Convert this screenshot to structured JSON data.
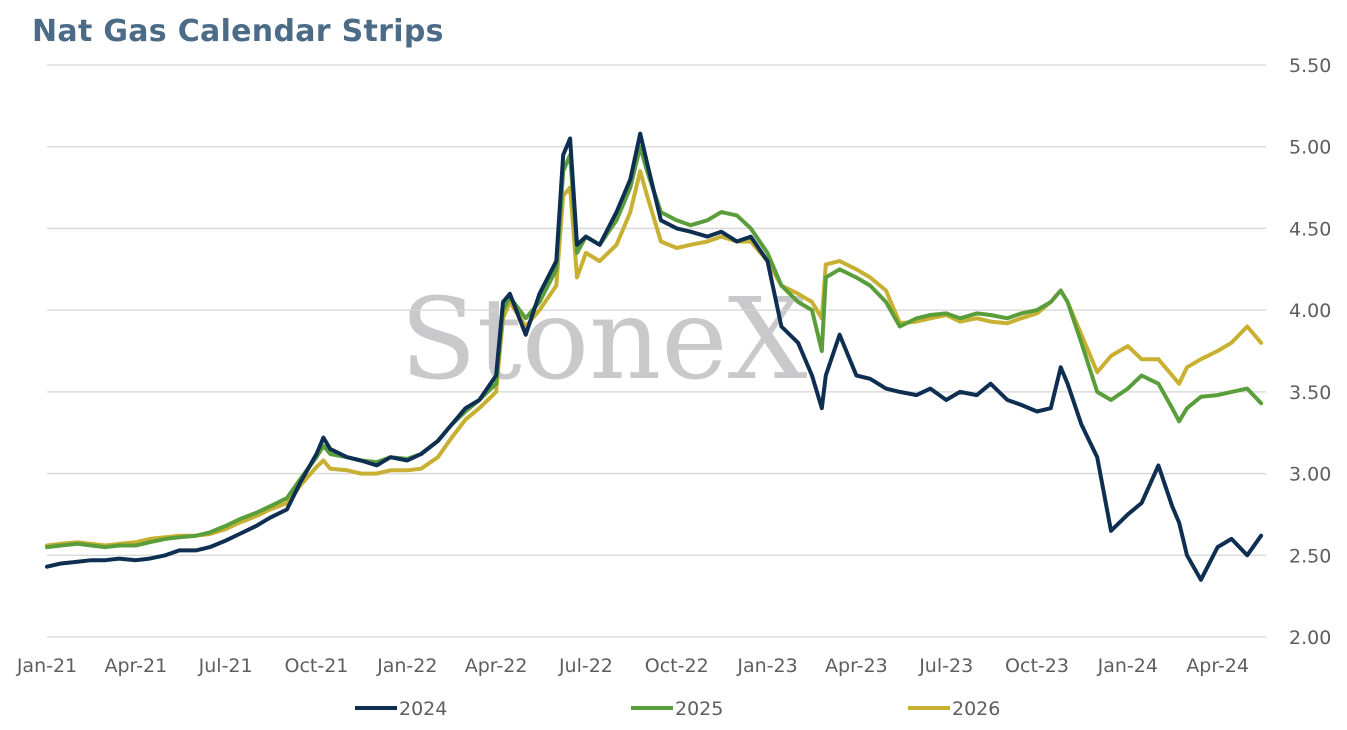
{
  "title": "Nat Gas Calendar Strips",
  "watermark": "StoneX",
  "colors": {
    "2024": "#0e2f52",
    "2025": "#5a9e3c",
    "2026": "#c8b032",
    "grid": "#d6d6d6"
  },
  "chart_data": {
    "type": "line",
    "title": "Nat Gas Calendar Strips",
    "xlabel": "",
    "ylabel": "",
    "ylim": [
      2.0,
      5.5
    ],
    "y_ticks": [
      "2.00",
      "2.50",
      "3.00",
      "3.50",
      "4.00",
      "4.50",
      "5.00",
      "5.50"
    ],
    "x_ticks": [
      "Jan-21",
      "Apr-21",
      "Jul-21",
      "Oct-21",
      "Jan-22",
      "Apr-22",
      "Jul-22",
      "Oct-22",
      "Jan-23",
      "Apr-23",
      "Jul-23",
      "Oct-23",
      "Jan-24",
      "Apr-24"
    ],
    "xlim": [
      "2021-01-01",
      "2024-05-20"
    ],
    "grid": true,
    "legend_position": "bottom",
    "x": [
      "2021-01-01",
      "2021-01-15",
      "2021-02-01",
      "2021-02-15",
      "2021-03-01",
      "2021-03-15",
      "2021-04-01",
      "2021-04-15",
      "2021-05-01",
      "2021-05-15",
      "2021-06-01",
      "2021-06-15",
      "2021-07-01",
      "2021-07-15",
      "2021-08-01",
      "2021-08-15",
      "2021-09-01",
      "2021-09-15",
      "2021-10-01",
      "2021-10-08",
      "2021-10-15",
      "2021-11-01",
      "2021-11-15",
      "2021-12-01",
      "2021-12-15",
      "2022-01-01",
      "2022-01-15",
      "2022-02-01",
      "2022-02-15",
      "2022-03-01",
      "2022-03-15",
      "2022-04-01",
      "2022-04-08",
      "2022-04-15",
      "2022-05-01",
      "2022-05-15",
      "2022-06-01",
      "2022-06-08",
      "2022-06-15",
      "2022-06-22",
      "2022-07-01",
      "2022-07-15",
      "2022-08-01",
      "2022-08-15",
      "2022-08-25",
      "2022-09-01",
      "2022-09-15",
      "2022-10-01",
      "2022-10-15",
      "2022-11-01",
      "2022-11-15",
      "2022-12-01",
      "2022-12-15",
      "2023-01-01",
      "2023-01-15",
      "2023-02-01",
      "2023-02-15",
      "2023-02-25",
      "2023-03-01",
      "2023-03-15",
      "2023-04-01",
      "2023-04-15",
      "2023-05-01",
      "2023-05-15",
      "2023-06-01",
      "2023-06-15",
      "2023-07-01",
      "2023-07-15",
      "2023-08-01",
      "2023-08-15",
      "2023-09-01",
      "2023-09-15",
      "2023-10-01",
      "2023-10-15",
      "2023-10-25",
      "2023-11-01",
      "2023-11-15",
      "2023-12-01",
      "2023-12-15",
      "2024-01-01",
      "2024-01-15",
      "2024-02-01",
      "2024-02-15",
      "2024-02-22",
      "2024-03-01",
      "2024-03-15",
      "2024-04-01",
      "2024-04-15",
      "2024-05-01",
      "2024-05-15"
    ],
    "series": [
      {
        "name": "2024",
        "values": [
          2.43,
          2.45,
          2.46,
          2.47,
          2.47,
          2.48,
          2.47,
          2.48,
          2.5,
          2.53,
          2.53,
          2.55,
          2.59,
          2.63,
          2.68,
          2.73,
          2.78,
          2.95,
          3.12,
          3.22,
          3.15,
          3.1,
          3.08,
          3.05,
          3.1,
          3.08,
          3.12,
          3.2,
          3.3,
          3.4,
          3.45,
          3.6,
          4.05,
          4.1,
          3.85,
          4.1,
          4.3,
          4.95,
          5.05,
          4.4,
          4.45,
          4.4,
          4.6,
          4.8,
          5.08,
          4.9,
          4.55,
          4.5,
          4.48,
          4.45,
          4.48,
          4.42,
          4.45,
          4.3,
          3.9,
          3.8,
          3.6,
          3.4,
          3.6,
          3.85,
          3.6,
          3.58,
          3.52,
          3.5,
          3.48,
          3.52,
          3.45,
          3.5,
          3.48,
          3.55,
          3.45,
          3.42,
          3.38,
          3.4,
          3.65,
          3.55,
          3.3,
          3.1,
          2.65,
          2.75,
          2.82,
          3.05,
          2.8,
          2.7,
          2.5,
          2.35,
          2.55,
          2.6,
          2.5,
          2.62
        ]
      },
      {
        "name": "2025",
        "values": [
          2.55,
          2.56,
          2.57,
          2.56,
          2.55,
          2.56,
          2.56,
          2.58,
          2.6,
          2.61,
          2.62,
          2.64,
          2.68,
          2.72,
          2.76,
          2.8,
          2.85,
          2.97,
          3.1,
          3.17,
          3.12,
          3.1,
          3.08,
          3.07,
          3.1,
          3.09,
          3.12,
          3.2,
          3.3,
          3.38,
          3.45,
          3.55,
          4.0,
          4.08,
          3.95,
          4.05,
          4.25,
          4.85,
          4.95,
          4.35,
          4.45,
          4.4,
          4.55,
          4.75,
          5.0,
          4.85,
          4.6,
          4.55,
          4.52,
          4.55,
          4.6,
          4.58,
          4.5,
          4.35,
          4.15,
          4.05,
          4.0,
          3.75,
          4.2,
          4.25,
          4.2,
          4.15,
          4.05,
          3.9,
          3.95,
          3.97,
          3.98,
          3.95,
          3.98,
          3.97,
          3.95,
          3.98,
          4.0,
          4.05,
          4.12,
          4.05,
          3.8,
          3.5,
          3.45,
          3.52,
          3.6,
          3.55,
          3.4,
          3.32,
          3.4,
          3.47,
          3.48,
          3.5,
          3.52,
          3.43
        ]
      },
      {
        "name": "2026",
        "values": [
          2.56,
          2.57,
          2.58,
          2.57,
          2.56,
          2.57,
          2.58,
          2.6,
          2.61,
          2.62,
          2.62,
          2.63,
          2.66,
          2.7,
          2.74,
          2.78,
          2.82,
          2.93,
          3.04,
          3.08,
          3.03,
          3.02,
          3.0,
          3.0,
          3.02,
          3.02,
          3.03,
          3.1,
          3.22,
          3.33,
          3.4,
          3.5,
          3.95,
          4.05,
          3.9,
          4.0,
          4.15,
          4.7,
          4.75,
          4.2,
          4.35,
          4.3,
          4.4,
          4.6,
          4.85,
          4.7,
          4.42,
          4.38,
          4.4,
          4.42,
          4.45,
          4.42,
          4.42,
          4.3,
          4.15,
          4.1,
          4.05,
          3.95,
          4.28,
          4.3,
          4.25,
          4.2,
          4.12,
          3.92,
          3.93,
          3.95,
          3.97,
          3.93,
          3.95,
          3.93,
          3.92,
          3.95,
          3.98,
          4.05,
          4.12,
          4.05,
          3.85,
          3.62,
          3.72,
          3.78,
          3.7,
          3.7,
          3.6,
          3.55,
          3.65,
          3.7,
          3.75,
          3.8,
          3.9,
          3.8
        ]
      }
    ]
  }
}
